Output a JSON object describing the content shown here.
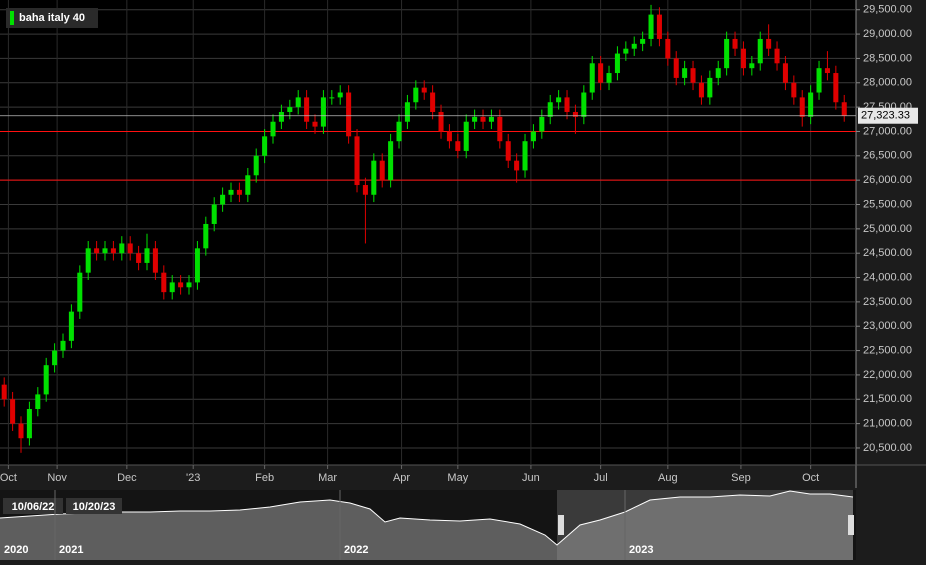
{
  "chart_data": {
    "type": "candlestick",
    "legend": "baha italy 40",
    "up_color": "#00e000",
    "down_color": "#e00000",
    "grid": true,
    "open": [
      21800,
      21500,
      21000,
      20700,
      21300,
      21600,
      22200,
      22500,
      22700,
      23300,
      24100,
      24600,
      24500,
      24600,
      24500,
      24700,
      24500,
      24300,
      24600,
      24100,
      23700,
      23900,
      23800,
      23900,
      24600,
      25100,
      25500,
      25700,
      25800,
      25700,
      26100,
      26500,
      26900,
      27200,
      27400,
      27500,
      27700,
      27200,
      27100,
      27700,
      27700,
      27800,
      26900,
      25900,
      25700,
      26400,
      26000,
      26800,
      27200,
      27600,
      27900,
      27800,
      27400,
      27000,
      26800,
      26600,
      27200,
      27300,
      27200,
      27300,
      26800,
      26400,
      26200,
      26800,
      27000,
      27300,
      27600,
      27700,
      27400,
      27300,
      27800,
      28400,
      28000,
      28200,
      28600,
      28700,
      28800,
      28900,
      29400,
      28900,
      28500,
      28100,
      28300,
      28000,
      27700,
      28100,
      28300,
      28900,
      28700,
      28300,
      28400,
      28900,
      28700,
      28400,
      28000,
      27700,
      27300,
      27800,
      28300,
      28200,
      27600
    ],
    "high": [
      21950,
      21650,
      21150,
      21450,
      21750,
      22350,
      22650,
      22850,
      23450,
      24250,
      24750,
      24750,
      24750,
      24750,
      24850,
      24850,
      24650,
      24900,
      24750,
      24250,
      24050,
      24050,
      24050,
      24750,
      25250,
      25650,
      25850,
      25950,
      25950,
      26250,
      26650,
      27050,
      27350,
      27550,
      27650,
      27850,
      27850,
      27350,
      27850,
      27850,
      27950,
      27950,
      27050,
      26050,
      26550,
      26550,
      26950,
      27350,
      27750,
      28050,
      28050,
      27950,
      27550,
      27150,
      26950,
      27350,
      27450,
      27450,
      27450,
      27450,
      26950,
      26550,
      26950,
      27150,
      27450,
      27750,
      27850,
      27850,
      27550,
      27950,
      28550,
      28550,
      28350,
      28750,
      28850,
      28950,
      29050,
      29600,
      29550,
      29050,
      28650,
      28450,
      28450,
      28150,
      28250,
      28450,
      29050,
      29050,
      28850,
      28550,
      29050,
      29200,
      28850,
      28550,
      28150,
      27850,
      27950,
      28450,
      28650,
      28350,
      27750
    ],
    "low": [
      21350,
      20850,
      20400,
      20550,
      21150,
      21450,
      22050,
      22350,
      22550,
      23150,
      23950,
      24350,
      24350,
      24350,
      24350,
      24350,
      24150,
      24150,
      23950,
      23550,
      23550,
      23650,
      23650,
      23750,
      24450,
      24950,
      25350,
      25550,
      25550,
      25550,
      25950,
      26350,
      26750,
      27050,
      27250,
      27350,
      27050,
      26950,
      26950,
      27550,
      27550,
      26750,
      25750,
      24700,
      25550,
      25850,
      25850,
      26650,
      27050,
      27450,
      27650,
      27250,
      26850,
      26650,
      26450,
      26450,
      27050,
      27050,
      27050,
      26650,
      26250,
      25950,
      26050,
      26650,
      26850,
      27150,
      27450,
      27250,
      26950,
      27150,
      27650,
      27850,
      27850,
      28050,
      28450,
      28550,
      28650,
      28750,
      28750,
      28350,
      27950,
      27950,
      27850,
      27550,
      27550,
      27950,
      28150,
      28550,
      28150,
      28150,
      28250,
      28550,
      28250,
      27850,
      27550,
      27100,
      27150,
      27650,
      28050,
      27450,
      27200
    ],
    "close": [
      21500,
      21000,
      20700,
      21300,
      21600,
      22200,
      22500,
      22700,
      23300,
      24100,
      24600,
      24500,
      24600,
      24500,
      24700,
      24500,
      24300,
      24600,
      24100,
      23700,
      23900,
      23800,
      23900,
      24600,
      25100,
      25500,
      25700,
      25800,
      25700,
      26100,
      26500,
      26900,
      27200,
      27400,
      27500,
      27700,
      27200,
      27100,
      27700,
      27700,
      27800,
      26900,
      25900,
      25700,
      26400,
      26000,
      26800,
      27200,
      27600,
      27900,
      27800,
      27400,
      27000,
      26800,
      26600,
      27200,
      27300,
      27200,
      27300,
      26800,
      26400,
      26200,
      26800,
      27000,
      27300,
      27600,
      27700,
      27400,
      27300,
      27800,
      28400,
      28000,
      28200,
      28600,
      28700,
      28800,
      28900,
      29400,
      28900,
      28500,
      28100,
      28300,
      28000,
      27700,
      28100,
      28300,
      28900,
      28700,
      28300,
      28400,
      28900,
      28700,
      28400,
      28000,
      27700,
      27300,
      27800,
      28300,
      28200,
      27600,
      27323.33
    ],
    "last_label": "27,323.33",
    "hlines": [
      27000,
      26000
    ],
    "hline_color": "#ff1010",
    "ylim": [
      20150,
      29700
    ],
    "yticks": [
      {
        "value": 20500,
        "label": "20,500.00"
      },
      {
        "value": 21000,
        "label": "21,000.00"
      },
      {
        "value": 21500,
        "label": "21,500.00"
      },
      {
        "value": 22000,
        "label": "22,000.00"
      },
      {
        "value": 22500,
        "label": "22,500.00"
      },
      {
        "value": 23000,
        "label": "23,000.00"
      },
      {
        "value": 23500,
        "label": "23,500.00"
      },
      {
        "value": 24000,
        "label": "24,000.00"
      },
      {
        "value": 24500,
        "label": "24,500.00"
      },
      {
        "value": 25000,
        "label": "25,000.00"
      },
      {
        "value": 25500,
        "label": "25,500.00"
      },
      {
        "value": 26000,
        "label": "26,000.00"
      },
      {
        "value": 26500,
        "label": "26,500.00"
      },
      {
        "value": 27000,
        "label": "27,000.00"
      },
      {
        "value": 27500,
        "label": "27,500.00"
      },
      {
        "value": 28000,
        "label": "28,000.00"
      },
      {
        "value": 28500,
        "label": "28,500.00"
      },
      {
        "value": 29000,
        "label": "29,000.00"
      },
      {
        "value": 29500,
        "label": "29,500.00"
      }
    ],
    "xlim": [
      -0.5,
      101.4
    ],
    "xticks": [
      {
        "value": 0.5,
        "label": "Oct"
      },
      {
        "value": 6.3,
        "label": "Nov"
      },
      {
        "value": 14.6,
        "label": "Dec"
      },
      {
        "value": 22.5,
        "label": "'23"
      },
      {
        "value": 31,
        "label": "Feb"
      },
      {
        "value": 38.5,
        "label": "Mar"
      },
      {
        "value": 47.3,
        "label": "Apr"
      },
      {
        "value": 54,
        "label": "May"
      },
      {
        "value": 62.7,
        "label": "Jun"
      },
      {
        "value": 71,
        "label": "Jul"
      },
      {
        "value": 79,
        "label": "Aug"
      },
      {
        "value": 87.7,
        "label": "Sep"
      },
      {
        "value": 96,
        "label": "Oct"
      }
    ],
    "navigator": {
      "start": "10/06/22",
      "end": "10/20/23",
      "years": [
        "2020",
        "2021",
        "2022",
        "2023"
      ]
    }
  }
}
